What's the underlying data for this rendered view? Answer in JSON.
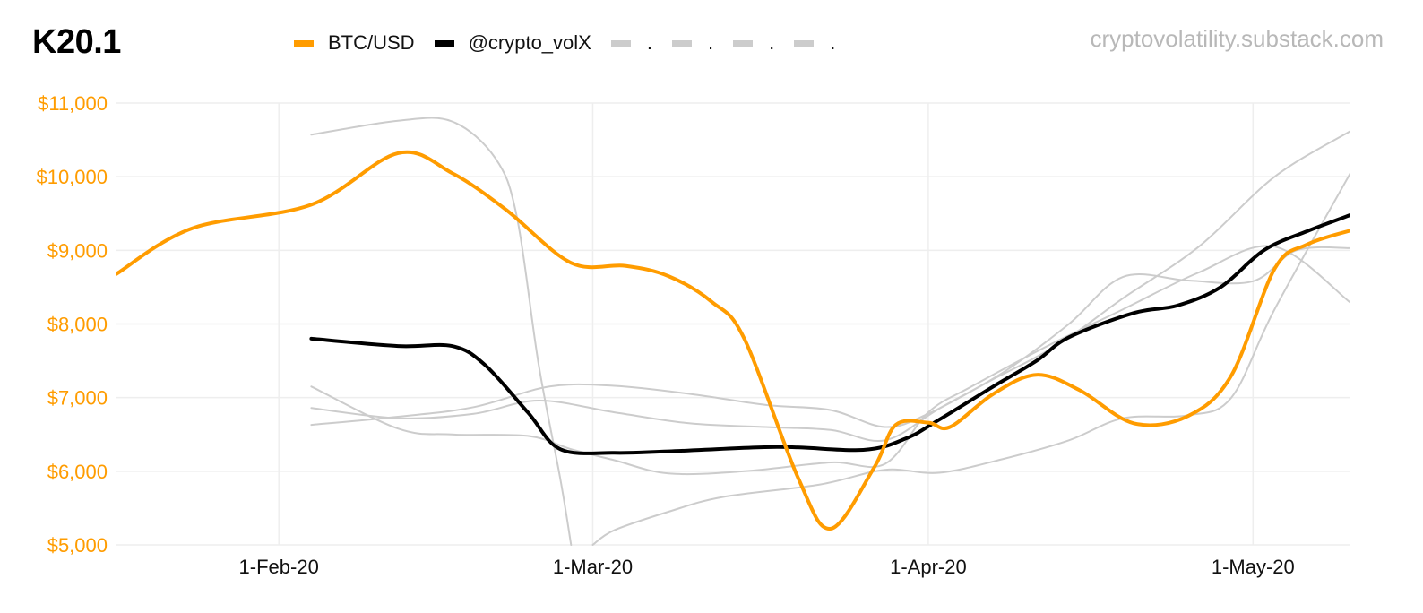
{
  "title": "K20.1",
  "watermark": "cryptovolatility.substack.com",
  "legend": [
    {
      "label": "BTC/USD",
      "color": "#ff9c00"
    },
    {
      "label": "@crypto_volX",
      "color": "#000000"
    },
    {
      "label": ".",
      "color": "#cccccc"
    },
    {
      "label": ".",
      "color": "#cccccc"
    },
    {
      "label": ".",
      "color": "#cccccc"
    },
    {
      "label": ".",
      "color": "#cccccc"
    }
  ],
  "colors": {
    "btc": "#ff9c00",
    "volx": "#000000",
    "gray": "#cccccc",
    "ytick": "#ff9c00",
    "grid": "#eeeeee"
  },
  "chart_data": {
    "type": "line",
    "x_axis": {
      "type": "date",
      "range": [
        "2020-01-17",
        "2020-05-10"
      ],
      "ticks": [
        "2020-02-01",
        "2020-03-01",
        "2020-04-01",
        "2020-05-01"
      ],
      "tick_labels": [
        "1-Feb-20",
        "1-Mar-20",
        "1-Apr-20",
        "1-May-20"
      ]
    },
    "y_axis": {
      "range": [
        5000,
        11000
      ],
      "ticks": [
        5000,
        6000,
        7000,
        8000,
        9000,
        10000,
        11000
      ],
      "tick_labels": [
        "$5,000",
        "$6,000",
        "$7,000",
        "$8,000",
        "$9,000",
        "$10,000",
        "$11,000"
      ]
    },
    "grid": true,
    "legend_position": "top",
    "series": [
      {
        "name": "BTC/USD",
        "color": "#ff9c00",
        "width": 4,
        "points": [
          [
            "2020-01-17",
            8680
          ],
          [
            "2020-01-24",
            9300
          ],
          [
            "2020-02-04",
            9620
          ],
          [
            "2020-02-12",
            10320
          ],
          [
            "2020-02-17",
            10050
          ],
          [
            "2020-02-22",
            9550
          ],
          [
            "2020-02-28",
            8830
          ],
          [
            "2020-03-04",
            8790
          ],
          [
            "2020-03-08",
            8650
          ],
          [
            "2020-03-12",
            8300
          ],
          [
            "2020-03-15",
            7800
          ],
          [
            "2020-03-20",
            5900
          ],
          [
            "2020-03-23",
            5220
          ],
          [
            "2020-03-27",
            6050
          ],
          [
            "2020-03-29",
            6630
          ],
          [
            "2020-04-01",
            6660
          ],
          [
            "2020-04-03",
            6600
          ],
          [
            "2020-04-07",
            7050
          ],
          [
            "2020-04-11",
            7310
          ],
          [
            "2020-04-15",
            7100
          ],
          [
            "2020-04-20",
            6650
          ],
          [
            "2020-04-25",
            6750
          ],
          [
            "2020-04-29",
            7300
          ],
          [
            "2020-05-03",
            8750
          ],
          [
            "2020-05-06",
            9080
          ],
          [
            "2020-05-10",
            9270
          ]
        ]
      },
      {
        "name": "@crypto_volX",
        "color": "#000000",
        "width": 4,
        "points": [
          [
            "2020-02-04",
            7800
          ],
          [
            "2020-02-12",
            7700
          ],
          [
            "2020-02-17",
            7700
          ],
          [
            "2020-02-20",
            7450
          ],
          [
            "2020-02-24",
            6800
          ],
          [
            "2020-02-27",
            6300
          ],
          [
            "2020-03-03",
            6250
          ],
          [
            "2020-03-08",
            6270
          ],
          [
            "2020-03-18",
            6330
          ],
          [
            "2020-03-26",
            6290
          ],
          [
            "2020-03-30",
            6450
          ],
          [
            "2020-04-02",
            6700
          ],
          [
            "2020-04-07",
            7150
          ],
          [
            "2020-04-11",
            7500
          ],
          [
            "2020-04-14",
            7820
          ],
          [
            "2020-04-20",
            8150
          ],
          [
            "2020-04-24",
            8250
          ],
          [
            "2020-04-28",
            8500
          ],
          [
            "2020-05-02",
            9000
          ],
          [
            "2020-05-06",
            9260
          ],
          [
            "2020-05-10",
            9480
          ]
        ]
      },
      {
        "color": "#cccccc",
        "width": 2,
        "points": [
          [
            "2020-02-04",
            10570
          ],
          [
            "2020-02-12",
            10760
          ],
          [
            "2020-02-17",
            10750
          ],
          [
            "2020-02-21",
            10250
          ],
          [
            "2020-02-23",
            9450
          ],
          [
            "2020-02-25",
            7450
          ],
          [
            "2020-02-27",
            5900
          ],
          [
            "2020-02-28",
            5000
          ]
        ]
      },
      {
        "color": "#cccccc",
        "width": 2,
        "points": [
          [
            "2020-03-01",
            5000
          ],
          [
            "2020-03-03",
            5200
          ],
          [
            "2020-03-08",
            5450
          ],
          [
            "2020-03-13",
            5650
          ],
          [
            "2020-03-22",
            5820
          ],
          [
            "2020-03-28",
            6020
          ],
          [
            "2020-04-02",
            5980
          ],
          [
            "2020-04-08",
            6170
          ],
          [
            "2020-04-14",
            6420
          ],
          [
            "2020-04-19",
            6720
          ],
          [
            "2020-04-25",
            6760
          ],
          [
            "2020-04-29",
            7000
          ],
          [
            "2020-05-03",
            8200
          ],
          [
            "2020-05-10",
            10050
          ]
        ]
      },
      {
        "color": "#cccccc",
        "width": 2,
        "points": [
          [
            "2020-02-04",
            7150
          ],
          [
            "2020-02-12",
            6580
          ],
          [
            "2020-02-17",
            6500
          ],
          [
            "2020-02-24",
            6480
          ],
          [
            "2020-02-28",
            6300
          ],
          [
            "2020-03-03",
            6150
          ],
          [
            "2020-03-08",
            5970
          ],
          [
            "2020-03-15",
            6000
          ],
          [
            "2020-03-23",
            6120
          ],
          [
            "2020-03-28",
            6100
          ],
          [
            "2020-04-01",
            6800
          ],
          [
            "2020-04-05",
            7150
          ],
          [
            "2020-04-12",
            7700
          ],
          [
            "2020-04-19",
            8200
          ],
          [
            "2020-04-26",
            8700
          ],
          [
            "2020-05-03",
            9050
          ],
          [
            "2020-05-10",
            8290
          ]
        ]
      },
      {
        "color": "#cccccc",
        "width": 2,
        "points": [
          [
            "2020-02-04",
            6630
          ],
          [
            "2020-02-12",
            6740
          ],
          [
            "2020-02-19",
            6870
          ],
          [
            "2020-02-26",
            7150
          ],
          [
            "2020-03-03",
            7160
          ],
          [
            "2020-03-10",
            7050
          ],
          [
            "2020-03-17",
            6900
          ],
          [
            "2020-03-23",
            6830
          ],
          [
            "2020-03-28",
            6600
          ],
          [
            "2020-04-01",
            6780
          ],
          [
            "2020-04-07",
            7250
          ],
          [
            "2020-04-13",
            7720
          ],
          [
            "2020-04-19",
            8350
          ],
          [
            "2020-04-26",
            9050
          ],
          [
            "2020-05-03",
            10000
          ],
          [
            "2020-05-10",
            10620
          ]
        ]
      },
      {
        "color": "#cccccc",
        "width": 2,
        "points": [
          [
            "2020-02-04",
            6860
          ],
          [
            "2020-02-12",
            6720
          ],
          [
            "2020-02-19",
            6780
          ],
          [
            "2020-02-25",
            6960
          ],
          [
            "2020-03-03",
            6800
          ],
          [
            "2020-03-10",
            6650
          ],
          [
            "2020-03-17",
            6600
          ],
          [
            "2020-03-23",
            6560
          ],
          [
            "2020-03-28",
            6420
          ],
          [
            "2020-04-02",
            6850
          ],
          [
            "2020-04-08",
            7350
          ],
          [
            "2020-04-14",
            8000
          ],
          [
            "2020-04-19",
            8640
          ],
          [
            "2020-04-25",
            8590
          ],
          [
            "2020-05-01",
            8580
          ],
          [
            "2020-05-05",
            9000
          ],
          [
            "2020-05-10",
            9030
          ]
        ]
      }
    ]
  }
}
